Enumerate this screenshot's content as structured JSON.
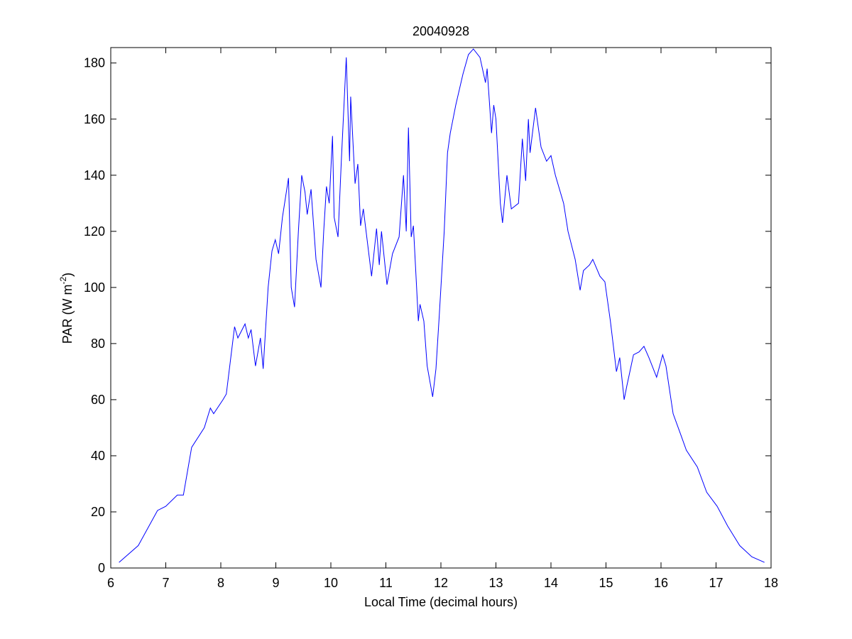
{
  "chart_data": {
    "type": "line",
    "title": "20040928",
    "xlabel": "Local Time (decimal hours)",
    "ylabel": {
      "text": "PAR (W m",
      "superscript": "-2",
      "suffix": ")"
    },
    "x": [
      6.15,
      6.5,
      6.85,
      7.0,
      7.21,
      7.32,
      7.47,
      7.7,
      7.81,
      7.87,
      8.04,
      8.1,
      8.25,
      8.31,
      8.44,
      8.5,
      8.55,
      8.63,
      8.72,
      8.77,
      8.86,
      8.93,
      8.99,
      9.05,
      9.12,
      9.23,
      9.28,
      9.34,
      9.41,
      9.47,
      9.53,
      9.57,
      9.64,
      9.73,
      9.82,
      9.87,
      9.92,
      9.97,
      10.03,
      10.06,
      10.13,
      10.19,
      10.28,
      10.34,
      10.36,
      10.44,
      10.49,
      10.54,
      10.59,
      10.74,
      10.83,
      10.88,
      10.92,
      11.02,
      11.12,
      11.24,
      11.32,
      11.37,
      11.41,
      11.46,
      11.5,
      11.59,
      11.62,
      11.69,
      11.75,
      11.85,
      11.91,
      11.97,
      12.06,
      12.12,
      12.17,
      12.27,
      12.4,
      12.5,
      12.59,
      12.71,
      12.81,
      12.84,
      12.92,
      12.96,
      13.0,
      13.08,
      13.12,
      13.2,
      13.28,
      13.41,
      13.48,
      13.54,
      13.59,
      13.62,
      13.72,
      13.82,
      13.92,
      14.0,
      14.08,
      14.23,
      14.31,
      14.44,
      14.53,
      14.59,
      14.7,
      14.76,
      14.89,
      14.98,
      15.08,
      15.19,
      15.25,
      15.33,
      15.38,
      15.5,
      15.6,
      15.69,
      15.78,
      15.92,
      16.03,
      16.09,
      16.22,
      16.35,
      16.46,
      16.66,
      16.83,
      17.02,
      17.21,
      17.43,
      17.65,
      17.88
    ],
    "series": [
      {
        "color": "#0000ff",
        "values": [
          2,
          8,
          20.5,
          22,
          26,
          26,
          43,
          50,
          57,
          55,
          60,
          62,
          86,
          82,
          87,
          82,
          85,
          72,
          82,
          71,
          100,
          113,
          117,
          112,
          125,
          139,
          100,
          93,
          120,
          140,
          134,
          126,
          135,
          110,
          100,
          120,
          136,
          130,
          154,
          125,
          118,
          145,
          182,
          145,
          168,
          137,
          144,
          122,
          128,
          104,
          121,
          108,
          120,
          101,
          112,
          118,
          140,
          120,
          157,
          118,
          122,
          88,
          94,
          88,
          72,
          61,
          71,
          90,
          120,
          148,
          155,
          165,
          176,
          183,
          185,
          182,
          173,
          178,
          155,
          165,
          160,
          130,
          123,
          140,
          128,
          130,
          153,
          138,
          160,
          148,
          164,
          150,
          145,
          147,
          140,
          130,
          120,
          110,
          99,
          106,
          108,
          110,
          104,
          102,
          88,
          70,
          75,
          60,
          65,
          76,
          77,
          79,
          75,
          68,
          76,
          72,
          55,
          48,
          42,
          36,
          27,
          22,
          15,
          8,
          4,
          2
        ]
      }
    ],
    "xlim": [
      6,
      18
    ],
    "xticks": [
      6,
      7,
      8,
      9,
      10,
      11,
      12,
      13,
      14,
      15,
      16,
      17,
      18
    ],
    "ylim": [
      0,
      185.5
    ],
    "yticks": [
      0,
      20,
      40,
      60,
      80,
      100,
      120,
      140,
      160,
      180
    ],
    "grid": false
  }
}
